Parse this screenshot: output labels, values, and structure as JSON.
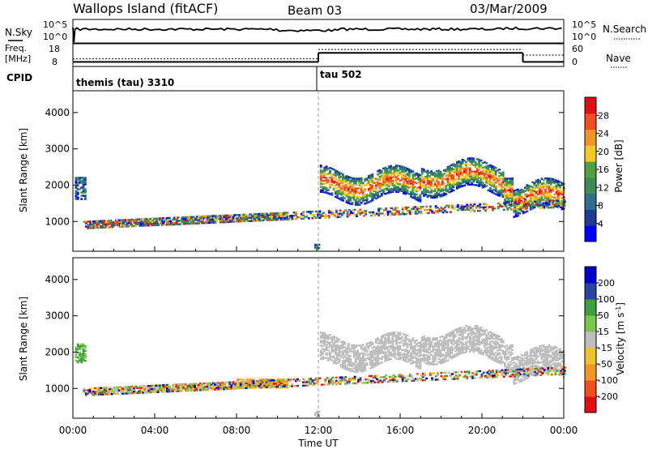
{
  "header": {
    "station": "Wallops Island (fitACF)",
    "beam": "Beam 03",
    "date": "03/Mar/2009"
  },
  "panels": {
    "nsky": {
      "label": "N.Sky",
      "right_label": "N.Search",
      "left_ticks": [
        "10^5",
        "10^0"
      ],
      "right_ticks": [
        "10^5",
        "10^0"
      ]
    },
    "freq": {
      "label_line1": "Freq.",
      "label_line2": "[MHz]",
      "right_label": "Nave",
      "left_ticks": [
        "18",
        "8"
      ],
      "right_ticks": [
        "60",
        "0"
      ],
      "freq_values_mhz": [
        {
          "t_start_h": 0.0,
          "t_end_h": 12.0,
          "value": 10.0
        },
        {
          "t_start_h": 12.0,
          "t_end_h": 22.0,
          "value": 14.0
        },
        {
          "t_start_h": 22.0,
          "t_end_h": 24.0,
          "value": 10.0
        }
      ],
      "nave_values": [
        {
          "t_start_h": 0.0,
          "t_end_h": 12.0,
          "value": 20
        },
        {
          "t_start_h": 12.0,
          "t_end_h": 22.0,
          "value": 45
        },
        {
          "t_start_h": 22.0,
          "t_end_h": 24.0,
          "value": 30
        }
      ]
    },
    "cpid": {
      "label": "CPID",
      "segments": [
        {
          "t_start_h": 0.0,
          "name": "themis (tau) 3310"
        },
        {
          "t_start_h": 12.0,
          "name": "tau 502"
        }
      ]
    }
  },
  "chart_data": [
    {
      "type": "heatmap",
      "ylabel": "Slant Range [km]",
      "xlabel": "Time UT",
      "x_ticks": [
        "00:00",
        "04:00",
        "08:00",
        "12:00",
        "16:00",
        "20:00",
        "00:00"
      ],
      "x_tick_hours": [
        0,
        4,
        8,
        12,
        16,
        20,
        24
      ],
      "y_ticks": [
        1000,
        2000,
        3000,
        4000
      ],
      "ylim": [
        180,
        4600
      ],
      "xlim_hours": [
        0,
        24
      ],
      "colorbar": {
        "label": "Power [dB]",
        "ticks": [
          28,
          24,
          20,
          16,
          12,
          8,
          4
        ],
        "range": [
          0,
          32
        ]
      },
      "echo_regions": [
        {
          "t_start_h": 0.1,
          "t_end_h": 0.6,
          "range_lo_km": 1600,
          "range_hi_km": 2200,
          "level": "moderate"
        },
        {
          "t_start_h": 0.8,
          "t_end_h": 10.5,
          "range_lo_km": 850,
          "range_hi_km": 1150,
          "level": "low"
        },
        {
          "t_start_h": 11.8,
          "t_end_h": 24.0,
          "range_lo_km": 1500,
          "range_hi_km": 2600,
          "level": "high"
        },
        {
          "t_start_h": 0.5,
          "t_end_h": 24.0,
          "range_lo_km": 200,
          "range_hi_km": 350,
          "level": "mixed"
        }
      ]
    },
    {
      "type": "heatmap",
      "ylabel": "Slant Range [km]",
      "xlabel": "Time UT",
      "x_ticks": [
        "00:00",
        "04:00",
        "08:00",
        "12:00",
        "16:00",
        "20:00",
        "00:00"
      ],
      "x_tick_hours": [
        0,
        4,
        8,
        12,
        16,
        20,
        24
      ],
      "y_ticks": [
        1000,
        2000,
        3000,
        4000
      ],
      "ylim": [
        180,
        4600
      ],
      "xlim_hours": [
        0,
        24
      ],
      "colorbar": {
        "label_main": "Velocity [m s",
        "label_sup": "-1",
        "label_end": "]",
        "ticks": [
          "200",
          "100",
          "50",
          "15",
          "-15",
          "-50",
          "-100",
          "-200"
        ]
      },
      "echo_regions": [
        {
          "t_start_h": 0.1,
          "t_end_h": 0.6,
          "range_lo_km": 1700,
          "range_hi_km": 2200,
          "velocity": "positive-moderate"
        },
        {
          "t_start_h": 0.8,
          "t_end_h": 10.5,
          "range_lo_km": 850,
          "range_hi_km": 1150,
          "velocity": "mixed-low"
        },
        {
          "t_start_h": 8.0,
          "t_end_h": 10.5,
          "range_lo_km": 1000,
          "range_hi_km": 1250,
          "velocity": "negative-moderate"
        },
        {
          "t_start_h": 11.8,
          "t_end_h": 24.0,
          "range_lo_km": 1500,
          "range_hi_km": 2600,
          "velocity": "ground-scatter"
        },
        {
          "t_start_h": 0.5,
          "t_end_h": 24.0,
          "range_lo_km": 200,
          "range_hi_km": 350,
          "velocity": "mixed"
        }
      ]
    }
  ],
  "colors": {
    "power_scale": [
      "#0000ff",
      "#1e3c96",
      "#2d6e8c",
      "#3c8c5a",
      "#50a040",
      "#f0c828",
      "#f09628",
      "#f05020",
      "#e01010"
    ],
    "velocity_scale": [
      "#e01010",
      "#f05020",
      "#f09628",
      "#f0c030",
      "#bebebe",
      "#78c850",
      "#40a040",
      "#2846a0",
      "#0000c8"
    ],
    "ground_scatter": "#bebebe"
  }
}
